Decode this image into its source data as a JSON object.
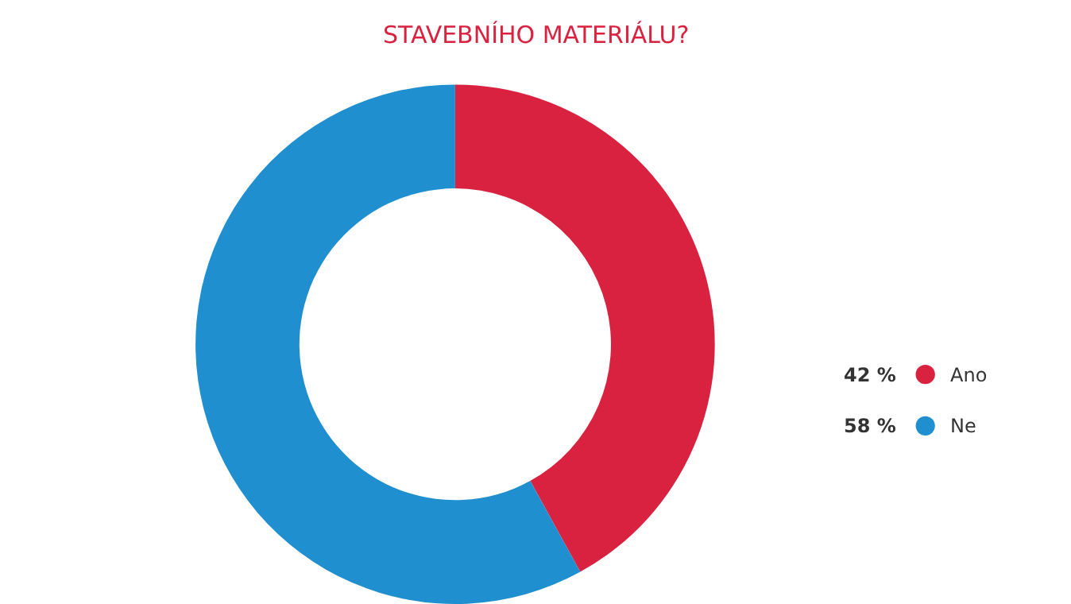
{
  "chart_data": {
    "type": "donut",
    "title": "STAVEBNÍHO MATERIÁLU?",
    "categories": [
      "Ano",
      "Ne"
    ],
    "values": [
      42,
      58
    ],
    "colors": [
      "#d9223f",
      "#1f8fcf"
    ],
    "value_labels": [
      "42 %",
      "58 %"
    ],
    "legend": "right"
  }
}
